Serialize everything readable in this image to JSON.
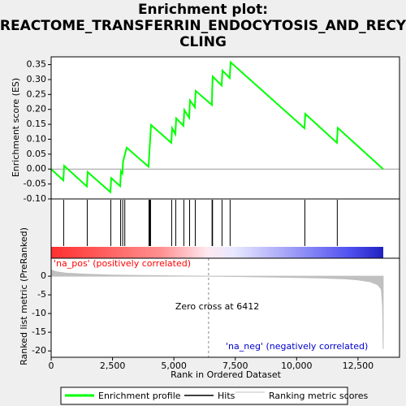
{
  "chart_data": {
    "type": "gsea",
    "title_lines": [
      "Enrichment plot:",
      "REACTOME_TRANSFERRIN_ENDOCYTOSIS_AND_RECY",
      "CLING"
    ],
    "es_ylabel": "Enrichment score (ES)",
    "metric_ylabel": "Ranked list metric (PreRanked)",
    "xlabel": "Rank in Ordered Dataset",
    "xlim": [
      0,
      14190
    ],
    "xticks": [
      0,
      {
        "value": 2500,
        "label": "2,500"
      },
      {
        "value": 5000,
        "label": "5,000"
      },
      {
        "value": 7500,
        "label": "7,500"
      },
      {
        "value": 10000,
        "label": "10,000"
      },
      {
        "value": 12500,
        "label": "12,500"
      }
    ],
    "ylim": [
      -0.1,
      0.376
    ],
    "yticks": [
      {
        "value": -0.1,
        "label": "-0.10"
      },
      {
        "value": -0.05,
        "label": "-0.05"
      },
      {
        "value": 0,
        "label": "0.00"
      },
      {
        "value": 0.05,
        "label": "0.05"
      },
      {
        "value": 0.1,
        "label": "0.10"
      },
      {
        "value": 0.15,
        "label": "0.15"
      },
      {
        "value": 0.2,
        "label": "0.20"
      },
      {
        "value": 0.25,
        "label": "0.25"
      },
      {
        "value": 0.3,
        "label": "0.30"
      },
      {
        "value": 0.35,
        "label": "0.35"
      }
    ],
    "y2lim": [
      -21.7,
      4.8
    ],
    "y2ticks": [
      0,
      -5,
      -10,
      -15,
      -20
    ],
    "series": [
      {
        "name": "Enrichment profile",
        "color": "#00ff00",
        "x": [
          0,
          496,
          529,
          1455,
          1488,
          2414,
          2447,
          2811,
          2844,
          2900,
          2930,
          3075,
          3968,
          4000,
          4035,
          4068,
          4894,
          4927,
          5060,
          5093,
          5390,
          5424,
          5622,
          5655,
          5853,
          5887,
          6548,
          6560,
          6581,
          6945,
          6978,
          7275,
          7308,
          10318,
          10351,
          11641,
          11674,
          13526
        ],
        "values": [
          0,
          -0.038,
          0.011,
          -0.058,
          -0.01,
          -0.077,
          -0.03,
          -0.057,
          -0.008,
          -0.015,
          0.025,
          0.072,
          0.008,
          0.055,
          0.1,
          0.148,
          0.088,
          0.137,
          0.117,
          0.17,
          0.145,
          0.198,
          0.172,
          0.23,
          0.207,
          0.262,
          0.215,
          0.265,
          0.31,
          0.28,
          0.33,
          0.305,
          0.358,
          0.137,
          0.185,
          0.088,
          0.138,
          0
        ]
      },
      {
        "name": "Hits",
        "color": "#000000",
        "x": [
          510,
          1470,
          2430,
          2830,
          2915,
          3000,
          3985,
          4020,
          4050,
          4910,
          5075,
          5405,
          5640,
          5870,
          6555,
          6575,
          6960,
          7290,
          10335,
          11655
        ]
      },
      {
        "name": "Ranking metric scores",
        "color": "#c0c0c0",
        "axis": "y2",
        "x": [
          0,
          200,
          600,
          1500,
          2500,
          4000,
          5500,
          6412,
          7500,
          9000,
          10000,
          11000,
          12000,
          12500,
          13000,
          13300,
          13450,
          13500,
          13526
        ],
        "values": [
          1.6,
          1.2,
          0.8,
          0.5,
          0.3,
          0.15,
          0.05,
          0,
          -0.1,
          -0.25,
          -0.35,
          -0.5,
          -0.75,
          -1.0,
          -1.5,
          -2.3,
          -3.5,
          -8,
          -19.5
        ]
      }
    ],
    "zero_cross": 6412,
    "zero_cross_label": "Zero cross at 6412",
    "pos_label": "'na_pos' (positively correlated)",
    "neg_label": "'na_neg' (negatively correlated)"
  }
}
